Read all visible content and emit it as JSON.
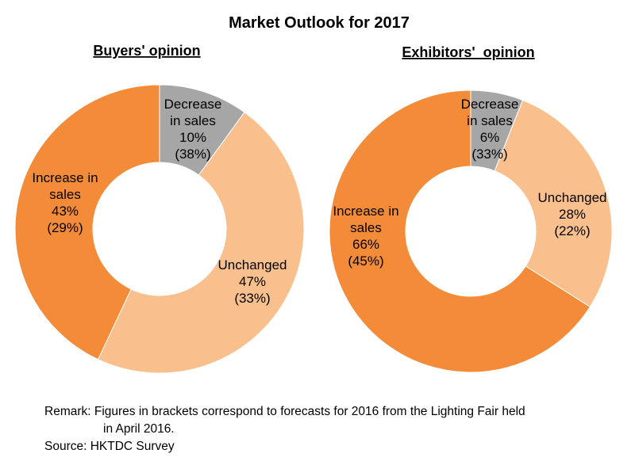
{
  "chart_data": {
    "title": "Market Outlook for 2017",
    "charts": [
      {
        "type": "pie",
        "subtitle": "Buyers' opinion",
        "slices": [
          {
            "label_lines": [
              "Decrease",
              "in sales"
            ],
            "value": 10,
            "value_text": "10%",
            "prev_text": "(38%)",
            "color": "#A6A6A6"
          },
          {
            "label_lines": [
              "Unchanged"
            ],
            "value": 47,
            "value_text": "47%",
            "prev_text": "(33%)",
            "color": "#F9C08E"
          },
          {
            "label_lines": [
              "Increase in",
              "sales"
            ],
            "value": 43,
            "value_text": "43%",
            "prev_text": "(29%)",
            "color": "#F38B38"
          }
        ]
      },
      {
        "type": "pie",
        "subtitle": "Exhibitors'  opinion",
        "slices": [
          {
            "label_lines": [
              "Decrease",
              "in sales"
            ],
            "value": 6,
            "value_text": "6%",
            "prev_text": "(33%)",
            "color": "#A6A6A6"
          },
          {
            "label_lines": [
              "Unchanged"
            ],
            "value": 28,
            "value_text": "28%",
            "prev_text": "(22%)",
            "color": "#F9C08E"
          },
          {
            "label_lines": [
              "Increase in",
              "sales"
            ],
            "value": 66,
            "value_text": "66%",
            "prev_text": "(45%)",
            "color": "#F38B38"
          }
        ]
      }
    ]
  },
  "remark": {
    "line1": "Remark: Figures in brackets correspond to forecasts for 2016 from the Lighting Fair held",
    "line2": "in April 2016.",
    "source": "Source: HKTDC Survey"
  }
}
